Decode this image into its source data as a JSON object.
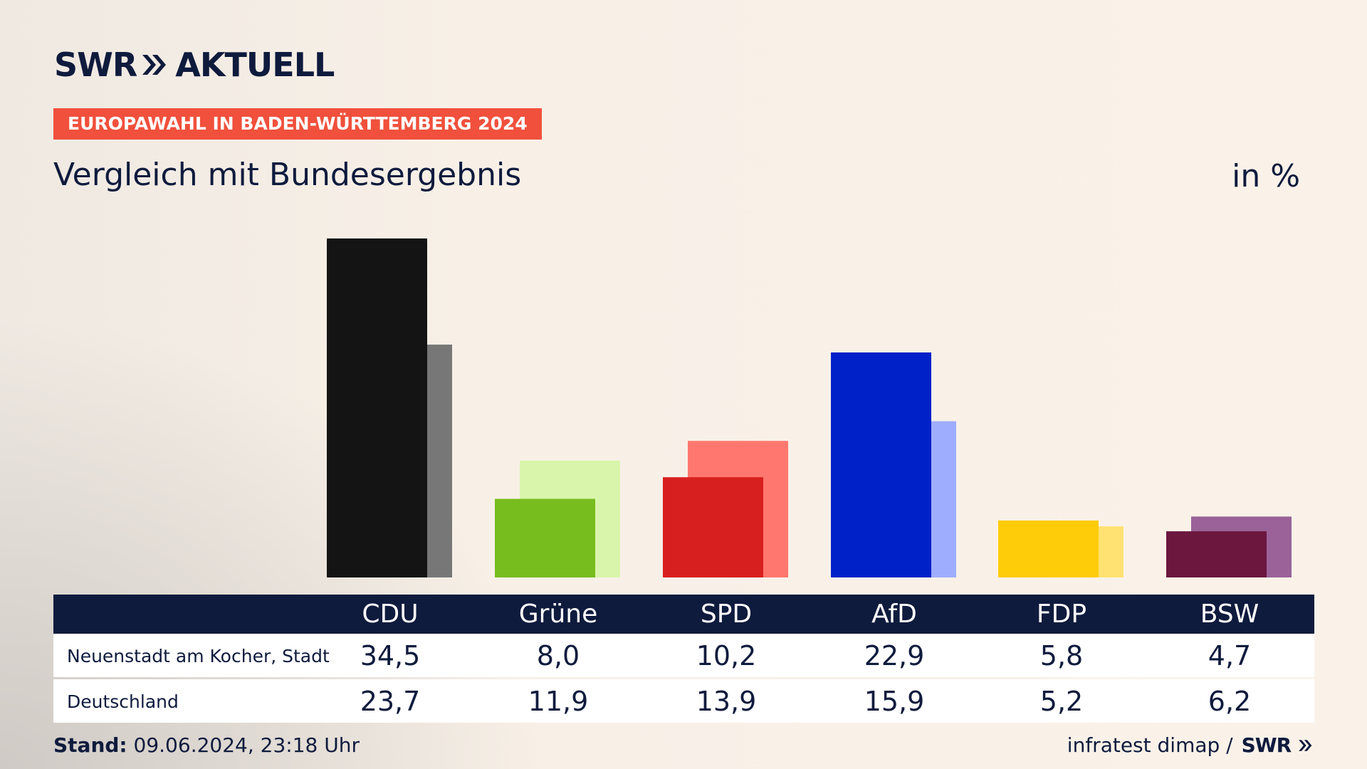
{
  "brand": {
    "logo_text_left": "SWR",
    "logo_text_right": "AKTUELL",
    "footer_logo": "SWR"
  },
  "badge": "EUROPAWAHL IN BADEN-WÜRTTEMBERG 2024",
  "header": {
    "title": "Vergleich mit Bundesergebnis",
    "unit": "in %"
  },
  "chart_data": {
    "type": "bar",
    "categories": [
      "CDU",
      "Grüne",
      "SPD",
      "AfD",
      "FDP",
      "BSW"
    ],
    "series": [
      {
        "name": "Neuenstadt am Kocher, Stadt",
        "values": [
          34.5,
          8.0,
          10.2,
          22.9,
          5.8,
          4.7
        ]
      },
      {
        "name": "Deutschland",
        "values": [
          23.7,
          11.9,
          13.9,
          15.9,
          5.2,
          6.2
        ]
      }
    ],
    "display_values": [
      [
        "34,5",
        "8,0",
        "10,2",
        "22,9",
        "5,8",
        "4,7"
      ],
      [
        "23,7",
        "11,9",
        "13,9",
        "15,9",
        "5,2",
        "6,2"
      ]
    ],
    "colors_local": [
      "#141414",
      "#77bd1e",
      "#d81f1f",
      "#0021c8",
      "#ffcc0a",
      "#6b173e"
    ],
    "colors_national": [
      "#777777",
      "#d9f5ab",
      "#ff776f",
      "#9fadff",
      "#ffe272",
      "#9a6298"
    ],
    "ylim": [
      0,
      35
    ]
  },
  "footer": {
    "stand_label": "Stand:",
    "stand_value": "09.06.2024, 23:18 Uhr",
    "source": "infratest dimap /"
  }
}
